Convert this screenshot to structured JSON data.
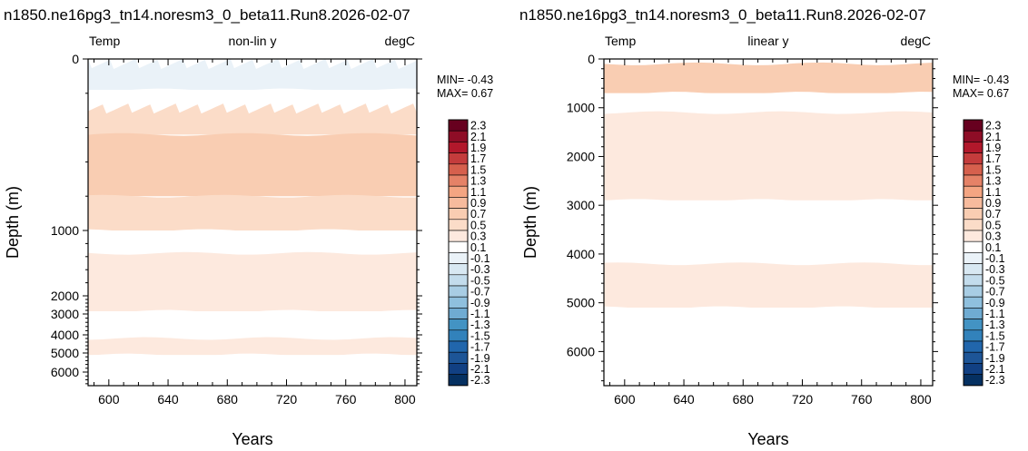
{
  "chart_data": [
    {
      "type": "heatmap",
      "title": "n1850.ne16pg3_tn14.noresm3_0_beta11.Run8.2026-02-07",
      "subtitle_left": "Temp",
      "subtitle_center": "non-lin y",
      "subtitle_right": "degC",
      "xlabel": "Years",
      "ylabel": "Depth (m)",
      "xlim": [
        586,
        808
      ],
      "xticks": [
        600,
        640,
        680,
        720,
        760,
        800
      ],
      "y_scale": "non-linear",
      "yticks": [
        0,
        1000,
        2000,
        3000,
        4000,
        5000,
        6000
      ],
      "min_label": "MIN= -0.43",
      "max_label": "MAX=  0.67",
      "bands": [
        {
          "top": 0,
          "bottom": 180,
          "value": -0.2,
          "label": "-0.1 to -0.3",
          "pattern": "spiky"
        },
        {
          "top": 180,
          "bottom": 260,
          "value": 0.0
        },
        {
          "top": 260,
          "bottom": 440,
          "value": 0.4,
          "pattern": "spiky"
        },
        {
          "top": 440,
          "bottom": 800,
          "value": 0.6
        },
        {
          "top": 800,
          "bottom": 1000,
          "value": 0.4
        },
        {
          "top": 1000,
          "bottom": 1350,
          "value": 0.0
        },
        {
          "top": 1350,
          "bottom": 2850,
          "value": 0.2
        },
        {
          "top": 2850,
          "bottom": 4200,
          "value": 0.0
        },
        {
          "top": 4200,
          "bottom": 5100,
          "value": 0.2
        },
        {
          "top": 5100,
          "bottom": 6700,
          "value": 0.0
        }
      ]
    },
    {
      "type": "heatmap",
      "title": "n1850.ne16pg3_tn14.noresm3_0_beta11.Run8.2026-02-07",
      "subtitle_left": "Temp",
      "subtitle_center": "linear y",
      "subtitle_right": "degC",
      "xlabel": "Years",
      "ylabel": "Depth (m)",
      "xlim": [
        586,
        808
      ],
      "xticks": [
        600,
        640,
        680,
        720,
        760,
        800
      ],
      "y_scale": "linear",
      "ylim": [
        0,
        6700
      ],
      "yticks": [
        0,
        1000,
        2000,
        3000,
        4000,
        5000,
        6000
      ],
      "min_label": "MIN= -0.43",
      "max_label": "MAX=  0.67",
      "bands": [
        {
          "top": 100,
          "bottom": 700,
          "value": 0.6
        },
        {
          "top": 700,
          "bottom": 1100,
          "value": 0.0
        },
        {
          "top": 1100,
          "bottom": 2900,
          "value": 0.2
        },
        {
          "top": 2900,
          "bottom": 4200,
          "value": 0.0
        },
        {
          "top": 4200,
          "bottom": 5100,
          "value": 0.2
        },
        {
          "top": 5100,
          "bottom": 6700,
          "value": 0.0
        }
      ]
    }
  ],
  "colorbar": {
    "labels": [
      "2.3",
      "2.1",
      "1.9",
      "1.7",
      "1.5",
      "1.3",
      "1.1",
      "0.9",
      "0.7",
      "0.5",
      "0.3",
      "0.1",
      "-0.1",
      "-0.3",
      "-0.5",
      "-0.7",
      "-0.9",
      "-1.1",
      "-1.3",
      "-1.5",
      "-1.7",
      "-1.9",
      "-2.1",
      "-2.3"
    ],
    "colors": [
      "#67001f",
      "#8e0d26",
      "#b2182b",
      "#c43c3c",
      "#d6604d",
      "#e58267",
      "#f4a582",
      "#f7bb9d",
      "#f9cdb2",
      "#fbdcc8",
      "#fde9de",
      "#ffffff",
      "#eaf2f8",
      "#d8e8f2",
      "#c3dcec",
      "#a8cde4",
      "#8fc0de",
      "#6fabd2",
      "#4393c3",
      "#3282bb",
      "#2166ac",
      "#1d5597",
      "#114083",
      "#053061"
    ]
  }
}
